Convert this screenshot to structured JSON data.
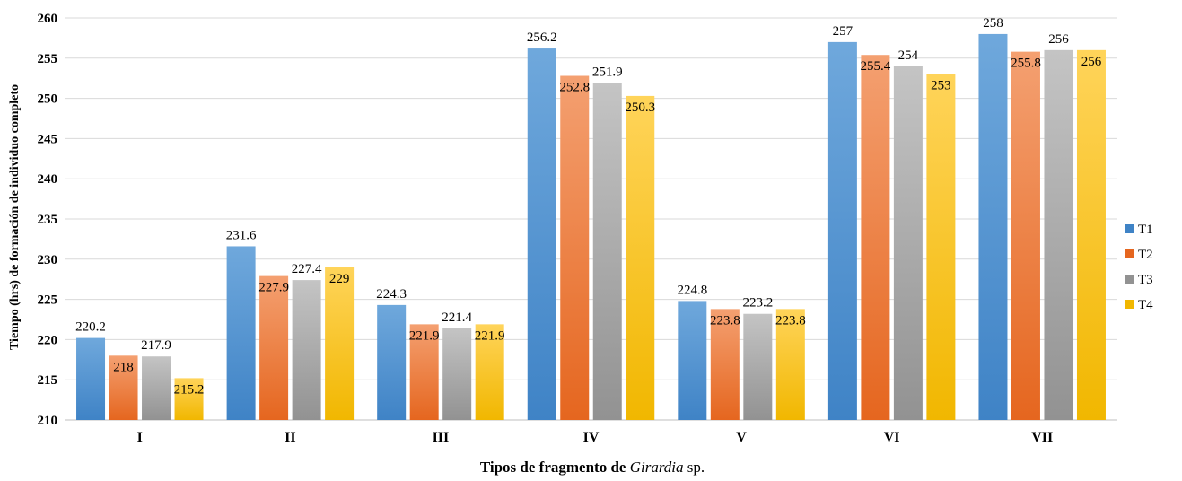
{
  "chart_data": {
    "type": "bar",
    "title": "",
    "xlabel_prefix": "Tipos de fragmento de ",
    "xlabel_italic": "Girardia",
    "xlabel_suffix": " sp.",
    "ylabel": "Tiempo (hrs) de formación de individuo completo",
    "ylim": [
      210,
      260
    ],
    "yticks": [
      210,
      215,
      220,
      225,
      230,
      235,
      240,
      245,
      250,
      255,
      260
    ],
    "grid": true,
    "legend_position": "right",
    "categories": [
      "I",
      "II",
      "III",
      "IV",
      "V",
      "VI",
      "VII"
    ],
    "series": [
      {
        "name": "T1",
        "color_top": "#6fa8dc",
        "color_bottom": "#3f83c6",
        "values": [
          220.2,
          231.6,
          224.3,
          256.2,
          224.8,
          257,
          258
        ],
        "labels": [
          "220.2",
          "231.6",
          "224.3",
          "256.2",
          "224.8",
          "257",
          "258"
        ]
      },
      {
        "name": "T2",
        "color_top": "#f4a071",
        "color_bottom": "#e5661f",
        "values": [
          218,
          227.9,
          221.9,
          252.8,
          223.8,
          255.4,
          255.8
        ],
        "labels": [
          "218",
          "227.9",
          "221.9",
          "252.8",
          "223.8",
          "255.4",
          "255.8"
        ]
      },
      {
        "name": "T3",
        "color_top": "#c4c4c4",
        "color_bottom": "#929292",
        "values": [
          217.9,
          227.4,
          221.4,
          251.9,
          223.2,
          254,
          256
        ],
        "labels": [
          "217.9",
          "227.4",
          "221.4",
          "251.9",
          "223.2",
          "254",
          "256"
        ]
      },
      {
        "name": "T4",
        "color_top": "#ffd45a",
        "color_bottom": "#f1b700",
        "values": [
          215.2,
          229,
          221.9,
          250.3,
          223.8,
          253,
          256
        ],
        "labels": [
          "215.2",
          "229",
          "221.9",
          "250.3",
          "223.8",
          "253",
          "256"
        ]
      }
    ],
    "label_inside": [
      [
        false,
        true,
        false,
        true
      ],
      [
        false,
        true,
        false,
        true
      ],
      [
        false,
        true,
        false,
        true
      ],
      [
        false,
        true,
        false,
        true
      ],
      [
        false,
        true,
        false,
        true
      ],
      [
        false,
        true,
        false,
        true
      ],
      [
        false,
        true,
        false,
        true
      ]
    ]
  }
}
